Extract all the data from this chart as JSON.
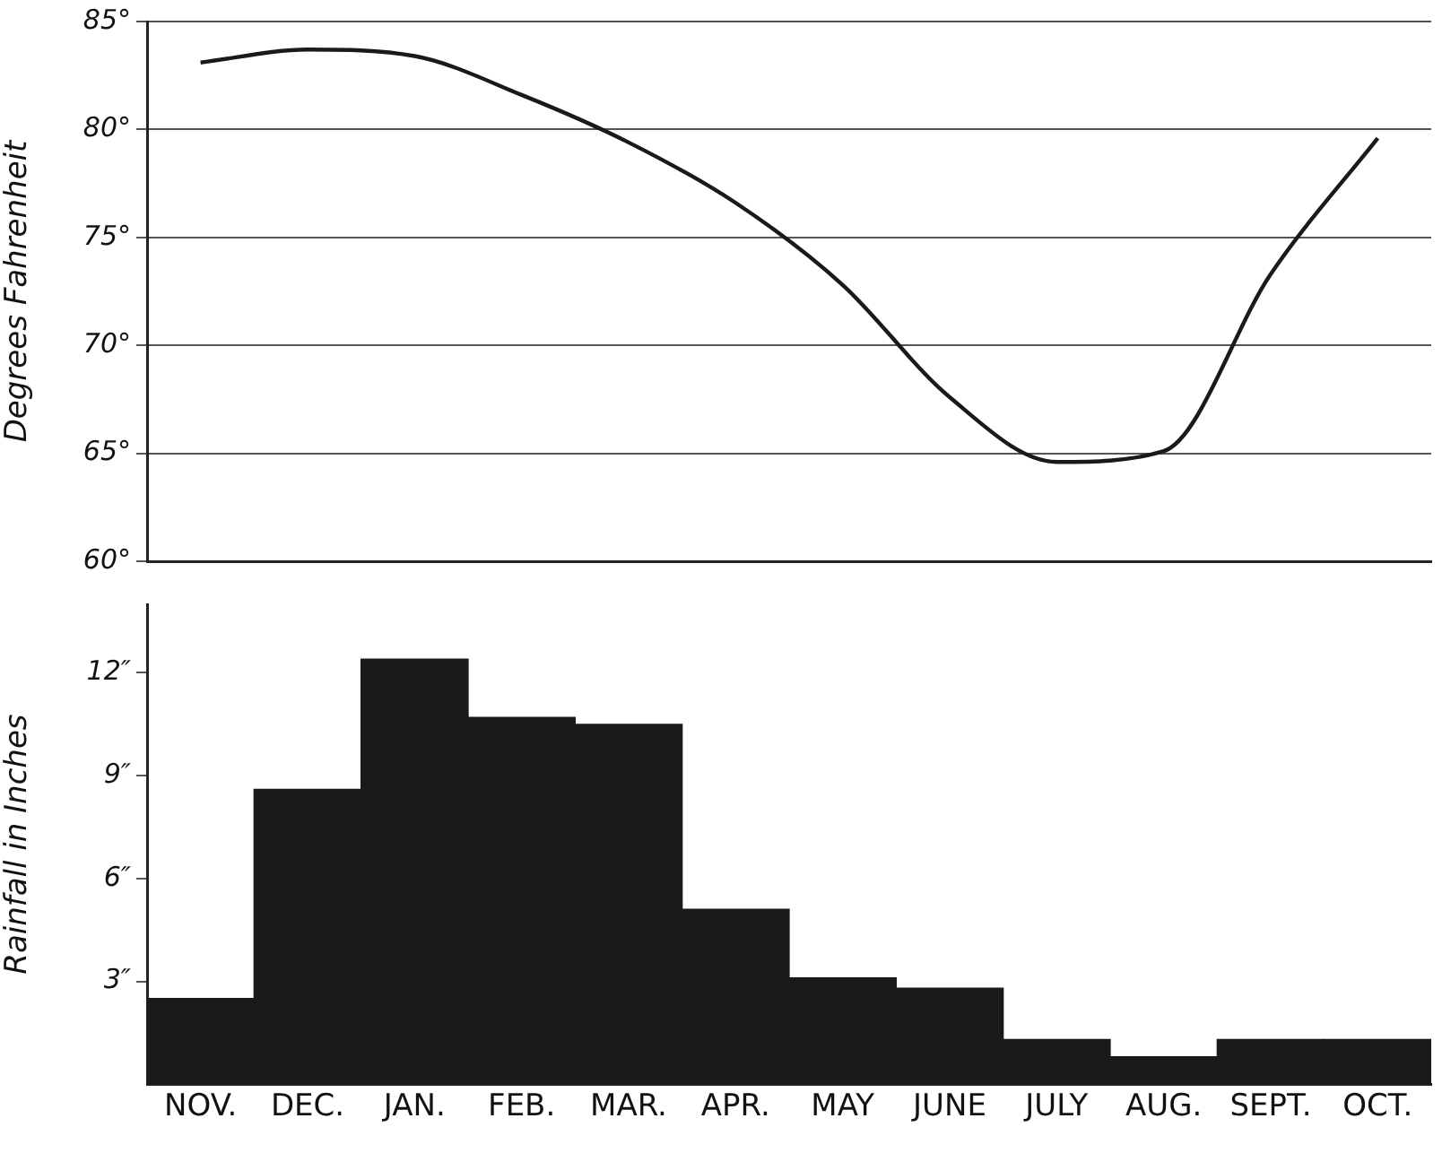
{
  "chart_data": [
    {
      "type": "line",
      "ylabel": "Degrees Fahrenheit",
      "categories": [
        null,
        null,
        null,
        null,
        null,
        null,
        null,
        null,
        null,
        null,
        null,
        null
      ],
      "series": [
        {
          "color": "#1a1a1a",
          "values": [
            83.1,
            83.7,
            83.4,
            81.6,
            79.4,
            76.6,
            72.8,
            67.6,
            64.6,
            65.1,
            73.3,
            79.6
          ]
        }
      ],
      "ylim": [
        60,
        85
      ],
      "yticks": [
        {
          "value": 60,
          "label": "60°"
        },
        {
          "value": 65,
          "label": "65°"
        },
        {
          "value": 70,
          "label": "70°"
        },
        {
          "value": 75,
          "label": "75°"
        },
        {
          "value": 80,
          "label": "80°"
        },
        {
          "value": 85,
          "label": "85°"
        }
      ],
      "grid": "y",
      "legend": false,
      "marker": "none",
      "line_style": "solid",
      "tick_labels": "y"
    },
    {
      "type": "bar",
      "ylabel": "Rainfall in Inches",
      "categories": [
        "NOV.",
        "DEC.",
        "JAN.",
        "FEB.",
        "MAR.",
        "APR.",
        "MAY",
        "JUNE",
        "JULY",
        "AUG.",
        "SEPT.",
        "OCT."
      ],
      "series": [
        {
          "color": "#1a1a1a",
          "values": [
            2.5,
            8.6,
            12.4,
            10.7,
            10.5,
            5.1,
            3.1,
            2.8,
            1.3,
            0.8,
            1.3,
            1.3
          ]
        }
      ],
      "ylim": [
        0,
        14
      ],
      "yticks": [
        {
          "value": 3,
          "label": "3″"
        },
        {
          "value": 6,
          "label": "6″"
        },
        {
          "value": 9,
          "label": "9″"
        },
        {
          "value": 12,
          "label": "12″"
        }
      ],
      "grid": false,
      "legend": false
    }
  ]
}
